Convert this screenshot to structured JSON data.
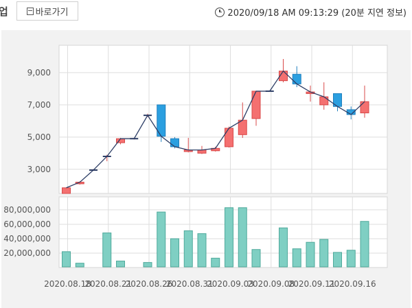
{
  "header": {
    "cut_title": "업",
    "shortcut_label": "바로가기",
    "timestamp": "2020/09/18 AM 09:13:29 (20분 지연 정보)"
  },
  "colors": {
    "up": "#f47070",
    "down": "#2b9fe0",
    "volume": "#7fcfc3",
    "line": "#2d3e66",
    "grid": "#dddddd"
  },
  "chart_data": {
    "type": "candlestick",
    "price_axis": {
      "ylim": [
        1500,
        10700
      ],
      "ticks": [
        3000,
        5000,
        7000,
        9000
      ],
      "tick_labels": [
        "3,000",
        "5,000",
        "7,000",
        "9,000"
      ]
    },
    "volume_axis": {
      "ylim": [
        0,
        98000000
      ],
      "ticks": [
        20000000,
        40000000,
        60000000,
        80000000
      ],
      "tick_labels": [
        "20,000,000",
        "40,000,000",
        "60,000,000",
        "80,000,000"
      ]
    },
    "x_tick_labels": [
      "2020.08.18",
      "2020.08.21",
      "2020.08.26",
      "2020.08.31",
      "2020.09.03",
      "2020.09.08",
      "2020.09.11",
      "2020.09.16"
    ],
    "x_tick_positions": [
      0,
      3,
      6,
      9,
      12,
      15,
      18,
      21
    ],
    "candles": [
      {
        "open": 1500,
        "close": 1850,
        "high": 1850,
        "low": 1500,
        "volume": 22000000
      },
      {
        "open": 2100,
        "close": 2200,
        "high": 2250,
        "low": 2050,
        "volume": 6000000
      },
      {
        "open": 2950,
        "close": 2950,
        "high": 3000,
        "low": 2900,
        "volume": 0
      },
      {
        "open": 3800,
        "close": 3800,
        "high": 3900,
        "low": 3500,
        "volume": 48000000
      },
      {
        "open": 4650,
        "close": 4900,
        "high": 4950,
        "low": 4550,
        "volume": 9000000
      },
      {
        "open": 4900,
        "close": 4900,
        "high": 4950,
        "low": 4850,
        "volume": 0
      },
      {
        "open": 6350,
        "close": 6350,
        "high": 6450,
        "low": 6250,
        "volume": 7000000
      },
      {
        "open": 7000,
        "close": 5050,
        "high": 7000,
        "low": 4700,
        "volume": 77000000
      },
      {
        "open": 4900,
        "close": 4400,
        "high": 5000,
        "low": 4300,
        "volume": 40000000
      },
      {
        "open": 4100,
        "close": 4200,
        "high": 4950,
        "low": 4050,
        "volume": 51000000
      },
      {
        "open": 4000,
        "close": 4200,
        "high": 4450,
        "low": 3950,
        "volume": 47000000
      },
      {
        "open": 4150,
        "close": 4300,
        "high": 4400,
        "low": 4100,
        "volume": 13000000
      },
      {
        "open": 4400,
        "close": 5550,
        "high": 5650,
        "low": 4350,
        "volume": 83000000
      },
      {
        "open": 5150,
        "close": 6050,
        "high": 7150,
        "low": 4950,
        "volume": 83000000
      },
      {
        "open": 6150,
        "close": 7850,
        "high": 7850,
        "low": 5700,
        "volume": 25000000
      },
      {
        "open": 7850,
        "close": 7850,
        "high": 7850,
        "low": 7850,
        "volume": 0
      },
      {
        "open": 8500,
        "close": 9100,
        "high": 9850,
        "low": 8400,
        "volume": 55000000
      },
      {
        "open": 8900,
        "close": 8300,
        "high": 9400,
        "low": 8100,
        "volume": 26000000
      },
      {
        "open": 7700,
        "close": 7800,
        "high": 8200,
        "low": 7200,
        "volume": 35000000
      },
      {
        "open": 7000,
        "close": 7500,
        "high": 8400,
        "low": 6700,
        "volume": 39000000
      },
      {
        "open": 7700,
        "close": 6900,
        "high": 7700,
        "low": 6600,
        "volume": 21000000
      },
      {
        "open": 6700,
        "close": 6400,
        "high": 6900,
        "low": 6100,
        "volume": 24000000
      },
      {
        "open": 6500,
        "close": 7200,
        "high": 8200,
        "low": 6200,
        "volume": 64000000
      }
    ]
  }
}
